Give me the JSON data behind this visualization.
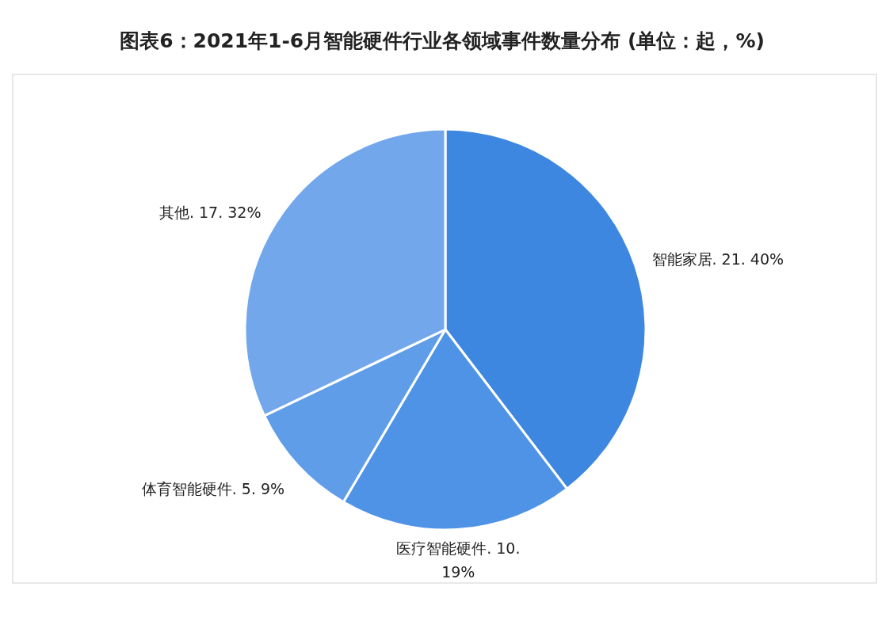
{
  "chart_data": {
    "type": "pie",
    "title": "图表6：2021年1-6月智能硬件行业各领域事件数量分布 (单位：起，%)",
    "categories": [
      "智能家居",
      "医疗智能硬件",
      "体育智能硬件",
      "其他"
    ],
    "values": [
      21,
      10,
      5,
      17
    ],
    "value_labels": [
      ". 21. 40%",
      ". 10. 19%",
      ". 5. 9%",
      ". 17. 32%"
    ],
    "colors": [
      "#3d87e0",
      "#4f93e6",
      "#5f9de8",
      "#72a8eb"
    ]
  }
}
